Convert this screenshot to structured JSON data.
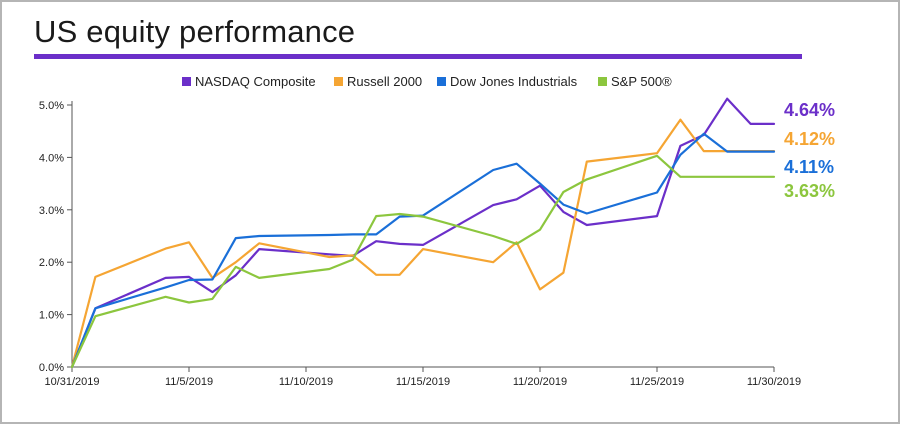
{
  "header": {
    "title": "US equity performance"
  },
  "colors": {
    "accent_rule": "#6b2fc9",
    "axis": "#555555"
  },
  "chart_data": {
    "type": "line",
    "title": "US equity performance",
    "xlabel": "",
    "ylabel": "",
    "x_tick_labels": [
      "10/31/2019",
      "11/5/2019",
      "11/10/2019",
      "11/15/2019",
      "11/20/2019",
      "11/25/2019",
      "11/30/2019"
    ],
    "y_tick_labels": [
      "0.0%",
      "1.0%",
      "2.0%",
      "3.0%",
      "4.0%",
      "5.0%"
    ],
    "ylim": [
      0,
      5
    ],
    "xlim": [
      "2019-10-31",
      "2019-11-30"
    ],
    "grid": false,
    "legend_position": "top",
    "series": [
      {
        "name": "NASDAQ Composite",
        "color": "#6b2fc9",
        "end_label": "4.64%",
        "points": [
          [
            "2019-10-31",
            0.0
          ],
          [
            "2019-11-01",
            1.12
          ],
          [
            "2019-11-04",
            1.7
          ],
          [
            "2019-11-05",
            1.72
          ],
          [
            "2019-11-06",
            1.43
          ],
          [
            "2019-11-07",
            1.75
          ],
          [
            "2019-11-08",
            2.25
          ],
          [
            "2019-11-11",
            2.15
          ],
          [
            "2019-11-12",
            2.12
          ],
          [
            "2019-11-13",
            2.4
          ],
          [
            "2019-11-14",
            2.35
          ],
          [
            "2019-11-15",
            2.33
          ],
          [
            "2019-11-18",
            3.09
          ],
          [
            "2019-11-19",
            3.2
          ],
          [
            "2019-11-20",
            3.46
          ],
          [
            "2019-11-21",
            2.96
          ],
          [
            "2019-11-22",
            2.71
          ],
          [
            "2019-11-25",
            2.88
          ],
          [
            "2019-11-26",
            4.22
          ],
          [
            "2019-11-27",
            4.43
          ],
          [
            "2019-11-28",
            5.12
          ],
          [
            "2019-11-29",
            4.64
          ],
          [
            "2019-11-30",
            4.64
          ]
        ]
      },
      {
        "name": "Russell 2000",
        "color": "#f5a533",
        "end_label": "4.12%",
        "points": [
          [
            "2019-10-31",
            0.0
          ],
          [
            "2019-11-01",
            1.72
          ],
          [
            "2019-11-04",
            2.26
          ],
          [
            "2019-11-05",
            2.38
          ],
          [
            "2019-11-06",
            1.7
          ],
          [
            "2019-11-07",
            2.0
          ],
          [
            "2019-11-08",
            2.36
          ],
          [
            "2019-11-11",
            2.1
          ],
          [
            "2019-11-12",
            2.13
          ],
          [
            "2019-11-13",
            1.76
          ],
          [
            "2019-11-14",
            1.76
          ],
          [
            "2019-11-15",
            2.25
          ],
          [
            "2019-11-18",
            2.0
          ],
          [
            "2019-11-19",
            2.38
          ],
          [
            "2019-11-20",
            1.48
          ],
          [
            "2019-11-21",
            1.8
          ],
          [
            "2019-11-22",
            3.92
          ],
          [
            "2019-11-25",
            4.08
          ],
          [
            "2019-11-26",
            4.72
          ],
          [
            "2019-11-27",
            4.12
          ],
          [
            "2019-11-28",
            4.12
          ],
          [
            "2019-11-29",
            4.12
          ],
          [
            "2019-11-30",
            4.12
          ]
        ]
      },
      {
        "name": "Dow Jones Industrials",
        "color": "#1a6fd8",
        "end_label": "4.11%",
        "points": [
          [
            "2019-10-31",
            0.0
          ],
          [
            "2019-11-01",
            1.12
          ],
          [
            "2019-11-04",
            1.52
          ],
          [
            "2019-11-05",
            1.66
          ],
          [
            "2019-11-06",
            1.67
          ],
          [
            "2019-11-07",
            2.46
          ],
          [
            "2019-11-08",
            2.5
          ],
          [
            "2019-11-11",
            2.52
          ],
          [
            "2019-11-12",
            2.53
          ],
          [
            "2019-11-13",
            2.53
          ],
          [
            "2019-11-14",
            2.87
          ],
          [
            "2019-11-15",
            2.89
          ],
          [
            "2019-11-18",
            3.76
          ],
          [
            "2019-11-19",
            3.88
          ],
          [
            "2019-11-20",
            3.5
          ],
          [
            "2019-11-21",
            3.1
          ],
          [
            "2019-11-22",
            2.93
          ],
          [
            "2019-11-25",
            3.33
          ],
          [
            "2019-11-26",
            4.05
          ],
          [
            "2019-11-27",
            4.45
          ],
          [
            "2019-11-28",
            4.11
          ],
          [
            "2019-11-29",
            4.11
          ],
          [
            "2019-11-30",
            4.11
          ]
        ]
      },
      {
        "name": "S&P 500®",
        "color": "#8cc63e",
        "end_label": "3.63%",
        "points": [
          [
            "2019-10-31",
            0.0
          ],
          [
            "2019-11-01",
            0.97
          ],
          [
            "2019-11-04",
            1.34
          ],
          [
            "2019-11-05",
            1.23
          ],
          [
            "2019-11-06",
            1.3
          ],
          [
            "2019-11-07",
            1.91
          ],
          [
            "2019-11-08",
            1.7
          ],
          [
            "2019-11-11",
            1.87
          ],
          [
            "2019-11-12",
            2.05
          ],
          [
            "2019-11-13",
            2.88
          ],
          [
            "2019-11-14",
            2.92
          ],
          [
            "2019-11-15",
            2.87
          ],
          [
            "2019-11-18",
            2.5
          ],
          [
            "2019-11-19",
            2.35
          ],
          [
            "2019-11-20",
            2.62
          ],
          [
            "2019-11-21",
            3.34
          ],
          [
            "2019-11-22",
            3.58
          ],
          [
            "2019-11-25",
            4.03
          ],
          [
            "2019-11-26",
            3.63
          ],
          [
            "2019-11-27",
            3.63
          ],
          [
            "2019-11-28",
            3.63
          ],
          [
            "2019-11-29",
            3.63
          ],
          [
            "2019-11-30",
            3.63
          ]
        ]
      }
    ]
  }
}
